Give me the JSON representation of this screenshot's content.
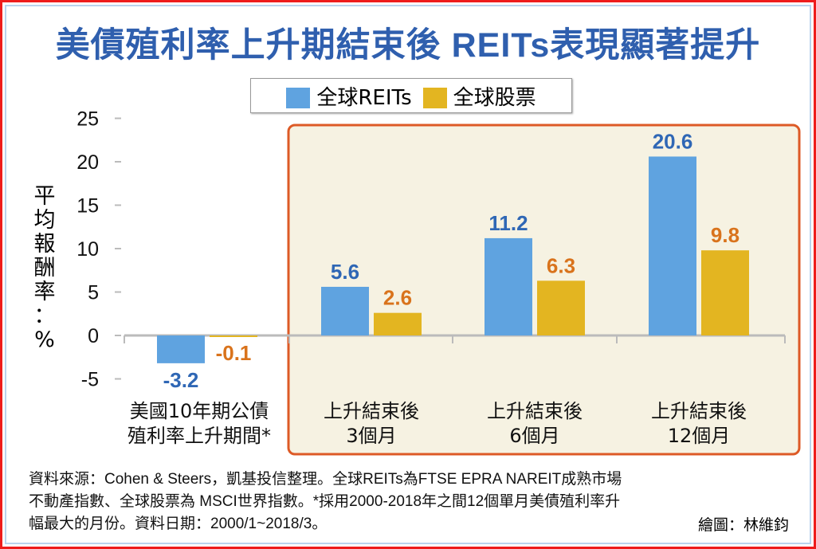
{
  "title": "美債殖利率上升期結束後  REITs表現顯著提升",
  "colors": {
    "reits": "#5fa3e0",
    "stocks": "#e3b521",
    "reits_label": "#2f67b5",
    "stocks_label": "#d9731c",
    "highlight_fill": "#f6f2e2",
    "highlight_border": "#dd5a26"
  },
  "chart_data": {
    "type": "bar",
    "title": "美債殖利率上升期結束後  REITs表現顯著提升",
    "ylabel": "平均報酬率：%",
    "xlabel": "",
    "ylim": [
      -5,
      25
    ],
    "yticks": [
      "25",
      "20",
      "15",
      "10",
      "5",
      "0",
      "-5"
    ],
    "ytick_values": [
      25,
      20,
      15,
      10,
      5,
      0,
      -5
    ],
    "categories": [
      [
        "美國10年期公債",
        "殖利率上升期間*"
      ],
      [
        "上升結束後",
        "3個月"
      ],
      [
        "上升結束後",
        "6個月"
      ],
      [
        "上升結束後",
        "12個月"
      ]
    ],
    "series": [
      {
        "name": "全球REITs",
        "values": [
          -3.2,
          5.6,
          11.2,
          20.6
        ],
        "labels": [
          "-3.2",
          "5.6",
          "11.2",
          "20.6"
        ]
      },
      {
        "name": "全球股票",
        "values": [
          -0.1,
          2.6,
          6.3,
          9.8
        ],
        "labels": [
          "-0.1",
          "2.6",
          "6.3",
          "9.8"
        ]
      }
    ],
    "legend": "top-center",
    "highlight": "categories 2-4",
    "grid": false
  },
  "ylabel_chars": [
    "平",
    "均",
    "報",
    "酬",
    "率",
    "：",
    "%"
  ],
  "note_lines": [
    "資料來源：Cohen & Steers，凱基投信整理。全球REITs為FTSE EPRA NAREIT成熟市場",
    "不動產指數、全球股票為  MSCI世界指數。*採用2000-2018年之間12個單月美債殖利率升",
    "幅最大的月份。資料日期：2000/1~2018/3。"
  ],
  "credit": "繪圖：林維鈞"
}
